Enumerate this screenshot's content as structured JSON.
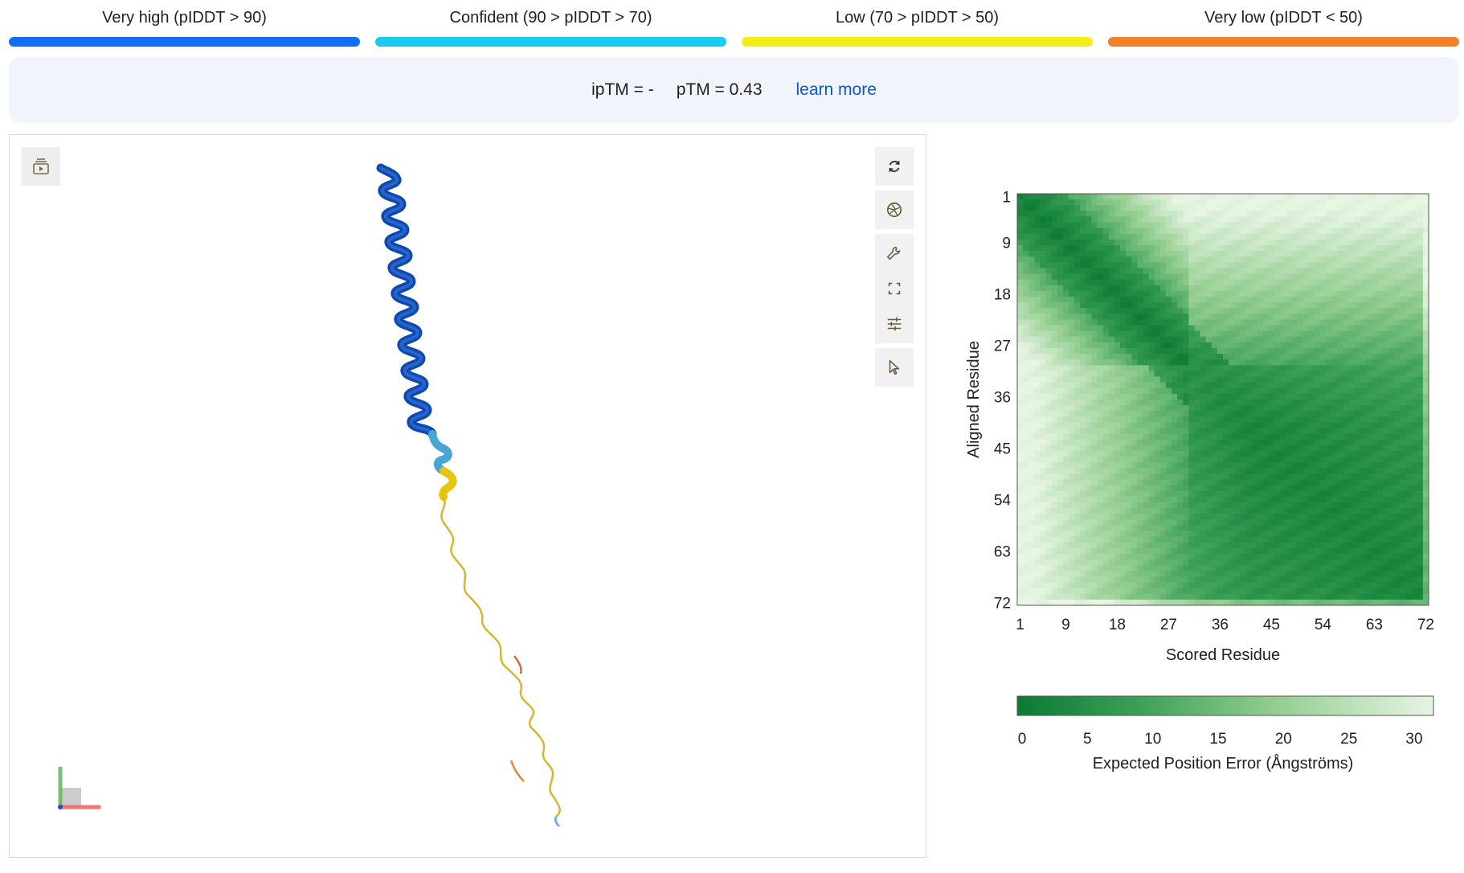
{
  "legend": [
    {
      "label": "Very high (pIDDT > 90)",
      "color": "#0f6ef5"
    },
    {
      "label": "Confident (90 > pIDDT > 70)",
      "color": "#17ccf0"
    },
    {
      "label": "Low (70 > pIDDT > 50)",
      "color": "#f3ee18"
    },
    {
      "label": "Very low (pIDDT < 50)",
      "color": "#f2812a"
    }
  ],
  "scores": {
    "iptm": "ipTM = -",
    "ptm": "pTM = 0.43",
    "learn_more": "learn more"
  },
  "viewer": {
    "icons": [
      "play-list-icon",
      "rotate-icon",
      "camera-shutter-icon",
      "wrench-icon",
      "fullscreen-icon",
      "sliders-icon",
      "pointer-icon"
    ]
  },
  "pae": {
    "y_label": "Aligned Residue",
    "x_label": "Scored Residue",
    "y_ticks": [
      "1",
      "9",
      "18",
      "27",
      "36",
      "45",
      "54",
      "63",
      "72"
    ],
    "x_ticks": [
      "1",
      "9",
      "18",
      "27",
      "36",
      "45",
      "54",
      "63",
      "72"
    ],
    "n_residues": 72,
    "colorbar_ticks": [
      "0",
      "5",
      "10",
      "15",
      "20",
      "25",
      "30"
    ],
    "colorbar_label": "Expected Position Error (Ångströms)",
    "color_low": "#0a7a32",
    "color_high": "#e7f5e3"
  },
  "chart_data": {
    "type": "heatmap",
    "xlabel": "Scored Residue",
    "ylabel": "Aligned Residue",
    "x_ticks": [
      1,
      9,
      18,
      27,
      36,
      45,
      54,
      63,
      72
    ],
    "y_ticks": [
      1,
      9,
      18,
      27,
      36,
      45,
      54,
      63,
      72
    ],
    "value_range": [
      0,
      31
    ],
    "colorbar_label": "Expected Position Error (Ångströms)",
    "description_of_values": "low error along diagonal; large low-error block for residues ~32-72; high error off-diagonal for residues 1-30"
  }
}
